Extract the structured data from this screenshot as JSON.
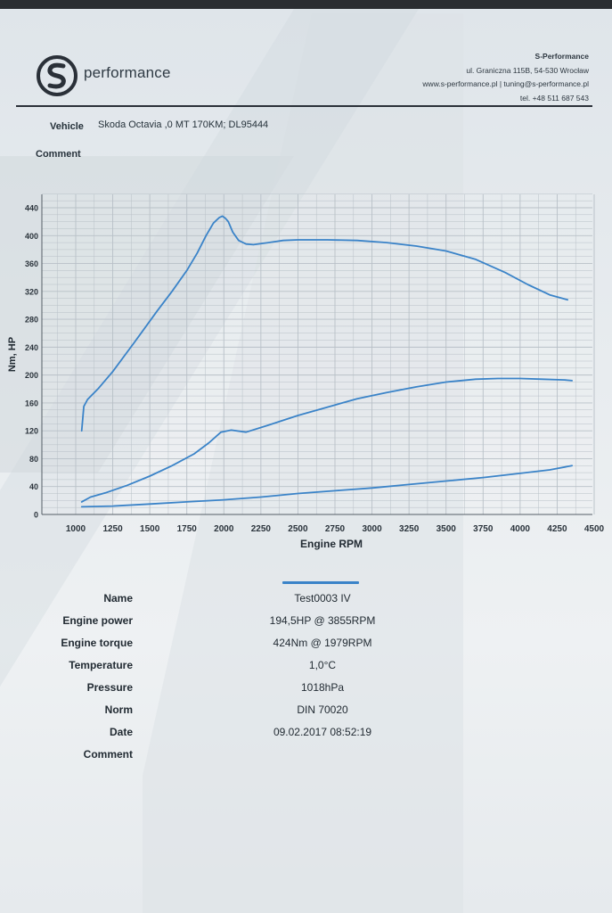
{
  "header": {
    "brand": "performance",
    "company": "S-Performance",
    "address": "ul. Graniczna 115B, 54-530 Wrocław",
    "web": "www.s-performance.pl | tuning@s-performance.pl",
    "phone": "tel. +48 511 687 543"
  },
  "vehicle": {
    "label": "Vehicle",
    "value": "Skoda Octavia ,0 MT 170KM; DL95444"
  },
  "comment_top": {
    "label": "Comment"
  },
  "chart_data": {
    "type": "line",
    "xlabel": "Engine RPM",
    "ylabel": "Nm, HP",
    "xlim": [
      850,
      4500
    ],
    "ylim": [
      0,
      460
    ],
    "x_ticks": [
      1000,
      1250,
      1500,
      1750,
      2000,
      2250,
      2500,
      2750,
      3000,
      3250,
      3500,
      3750,
      4000,
      4250,
      4500
    ],
    "y_ticks": [
      0,
      40,
      80,
      120,
      160,
      200,
      240,
      280,
      320,
      360,
      400,
      440
    ],
    "grid": true,
    "line_color": "#3a83c8",
    "series": [
      {
        "x": [
          1040,
          1055,
          1080,
          1150,
          1250,
          1400,
          1550,
          1650,
          1750,
          1820,
          1880,
          1930,
          1970,
          1990,
          2010,
          2030,
          2060,
          2100,
          2150,
          2200,
          2300,
          2400,
          2500,
          2700,
          2900,
          3100,
          3300,
          3500,
          3700,
          3900,
          4050,
          4200,
          4320
        ],
        "values": [
          120,
          155,
          165,
          180,
          205,
          248,
          292,
          320,
          350,
          375,
          400,
          418,
          426,
          428,
          425,
          420,
          405,
          393,
          388,
          387,
          390,
          393,
          394,
          394,
          393,
          390,
          385,
          378,
          366,
          347,
          330,
          315,
          308
        ]
      },
      {
        "x": [
          1040,
          1100,
          1200,
          1350,
          1500,
          1650,
          1800,
          1900,
          1980,
          2050,
          2150,
          2300,
          2500,
          2700,
          2900,
          3100,
          3300,
          3500,
          3700,
          3850,
          4000,
          4150,
          4300,
          4350
        ],
        "values": [
          18,
          25,
          31,
          42,
          55,
          70,
          87,
          103,
          118,
          121,
          118,
          128,
          142,
          154,
          166,
          175,
          183,
          190,
          194,
          195,
          195,
          194,
          193,
          192
        ]
      },
      {
        "x": [
          1040,
          1250,
          1500,
          1750,
          2000,
          2250,
          2500,
          2750,
          3000,
          3250,
          3500,
          3750,
          4000,
          4200,
          4350
        ],
        "values": [
          11,
          12,
          15,
          18,
          21,
          25,
          30,
          34,
          38,
          43,
          48,
          53,
          59,
          64,
          70
        ]
      }
    ]
  },
  "legend": {
    "color": "#3a83c8"
  },
  "info": [
    {
      "label": "Name",
      "value": "Test0003 IV"
    },
    {
      "label": "Engine power",
      "value": "194,5HP @  3855RPM"
    },
    {
      "label": "Engine torque",
      "value": "424Nm @ 1979RPM"
    },
    {
      "label": "Temperature",
      "value": "1,0°C"
    },
    {
      "label": "Pressure",
      "value": "1018hPa"
    },
    {
      "label": "Norm",
      "value": "DIN 70020"
    },
    {
      "label": "Date",
      "value": "09.02.2017 08:52:19"
    },
    {
      "label": "Comment",
      "value": ""
    }
  ]
}
